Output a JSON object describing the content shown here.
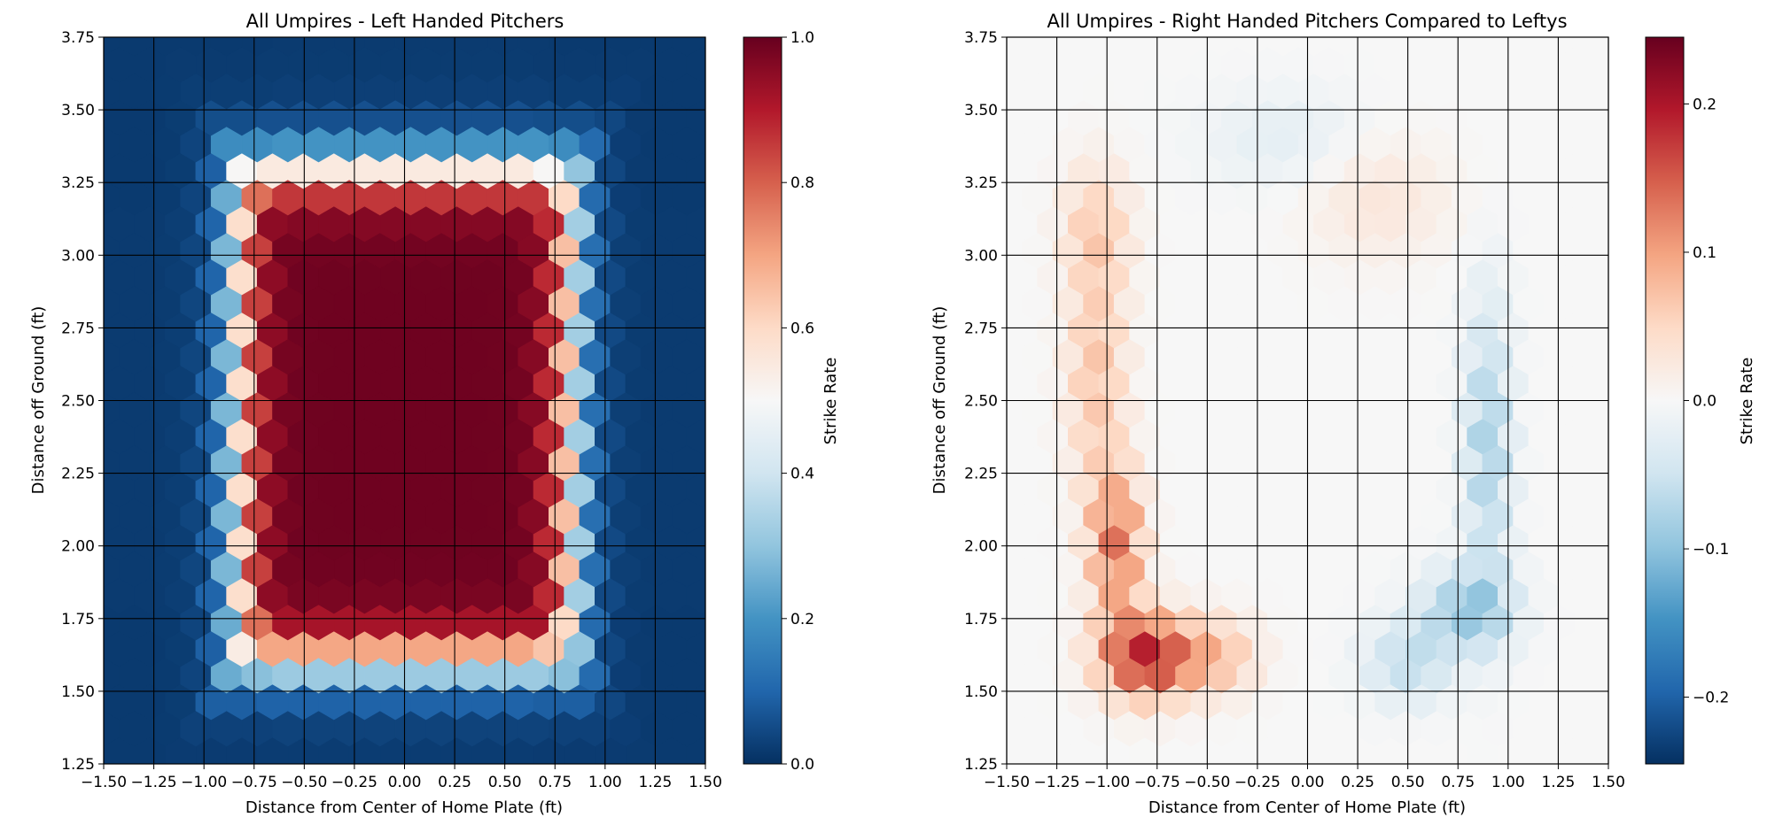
{
  "chart_data": [
    {
      "type": "heatmap",
      "style": "hexbin",
      "title": "All Umpires - Left Handed Pitchers",
      "xlabel": "Distance from Center of Home Plate (ft)",
      "ylabel": "Distance off Ground (ft)",
      "xlim": [
        -1.5,
        1.5
      ],
      "ylim": [
        1.25,
        3.75
      ],
      "xticks": [
        -1.5,
        -1.25,
        -1.0,
        -0.75,
        -0.5,
        -0.25,
        0.0,
        0.25,
        0.5,
        0.75,
        1.0,
        1.25,
        1.5
      ],
      "xtick_labels": [
        "−1.50",
        "−1.25",
        "−1.00",
        "−0.75",
        "−0.50",
        "−0.25",
        "0.00",
        "0.25",
        "0.50",
        "0.75",
        "1.00",
        "1.25",
        "1.50"
      ],
      "yticks": [
        1.25,
        1.5,
        1.75,
        2.0,
        2.25,
        2.5,
        2.75,
        3.0,
        3.25,
        3.5,
        3.75
      ],
      "ytick_labels": [
        "1.25",
        "1.50",
        "1.75",
        "2.00",
        "2.25",
        "2.50",
        "2.75",
        "3.00",
        "3.25",
        "3.50",
        "3.75"
      ],
      "grid": true,
      "colormap": "RdBu_r",
      "colorbar": {
        "label": "Strike Rate",
        "range": [
          0.0,
          1.0
        ],
        "ticks": [
          0.0,
          0.2,
          0.4,
          0.6,
          0.8,
          1.0
        ],
        "tick_labels": [
          "0.0",
          "0.2",
          "0.4",
          "0.6",
          "0.8",
          "1.0"
        ]
      },
      "strike_zone_model": {
        "x_center": 0.0,
        "y_center": 2.45,
        "half_width": 0.83,
        "half_height": 0.85,
        "edge_softness": 0.055,
        "peak_rate": 0.99,
        "floor_rate": 0.02
      }
    },
    {
      "type": "heatmap",
      "style": "hexbin",
      "title": "All Umpires - Right Handed Pitchers Compared to Leftys",
      "xlabel": "Distance from Center of Home Plate (ft)",
      "ylabel": "Distance off Ground (ft)",
      "xlim": [
        -1.5,
        1.5
      ],
      "ylim": [
        1.25,
        3.75
      ],
      "xticks": [
        -1.5,
        -1.25,
        -1.0,
        -0.75,
        -0.5,
        -0.25,
        0.0,
        0.25,
        0.5,
        0.75,
        1.0,
        1.25,
        1.5
      ],
      "xtick_labels": [
        "−1.50",
        "−1.25",
        "−1.00",
        "−0.75",
        "−0.50",
        "−0.25",
        "0.00",
        "0.25",
        "0.50",
        "0.75",
        "1.00",
        "1.25",
        "1.50"
      ],
      "yticks": [
        1.25,
        1.5,
        1.75,
        2.0,
        2.25,
        2.5,
        2.75,
        3.0,
        3.25,
        3.5,
        3.75
      ],
      "ytick_labels": [
        "1.25",
        "1.50",
        "1.75",
        "2.00",
        "2.25",
        "2.50",
        "2.75",
        "3.00",
        "3.25",
        "3.50",
        "3.75"
      ],
      "grid": true,
      "colormap": "RdBu_r",
      "colorbar": {
        "label": "Strike Rate",
        "range": [
          -0.245,
          0.245
        ],
        "ticks": [
          -0.2,
          -0.1,
          0.0,
          0.1,
          0.2
        ],
        "tick_labels": [
          "−0.2",
          "−0.1",
          "0.0",
          "0.1",
          "0.2"
        ]
      },
      "difference_hotspots": [
        {
          "x": -0.8,
          "y": 1.62,
          "value": 0.19,
          "sx": 0.16,
          "sy": 0.1
        },
        {
          "x": -0.95,
          "y": 2.0,
          "value": 0.13,
          "sx": 0.09,
          "sy": 0.18
        },
        {
          "x": -1.05,
          "y": 2.6,
          "value": 0.07,
          "sx": 0.1,
          "sy": 0.3
        },
        {
          "x": -0.45,
          "y": 1.62,
          "value": 0.07,
          "sx": 0.14,
          "sy": 0.09
        },
        {
          "x": -1.05,
          "y": 3.1,
          "value": 0.05,
          "sx": 0.12,
          "sy": 0.15
        },
        {
          "x": 0.35,
          "y": 3.2,
          "value": 0.03,
          "sx": 0.25,
          "sy": 0.15
        },
        {
          "x": 0.8,
          "y": 1.78,
          "value": -0.09,
          "sx": 0.16,
          "sy": 0.1
        },
        {
          "x": 0.9,
          "y": 2.35,
          "value": -0.08,
          "sx": 0.08,
          "sy": 0.35
        },
        {
          "x": 0.5,
          "y": 1.6,
          "value": -0.06,
          "sx": 0.15,
          "sy": 0.1
        },
        {
          "x": -0.1,
          "y": 3.4,
          "value": -0.025,
          "sx": 0.3,
          "sy": 0.12
        }
      ]
    }
  ]
}
